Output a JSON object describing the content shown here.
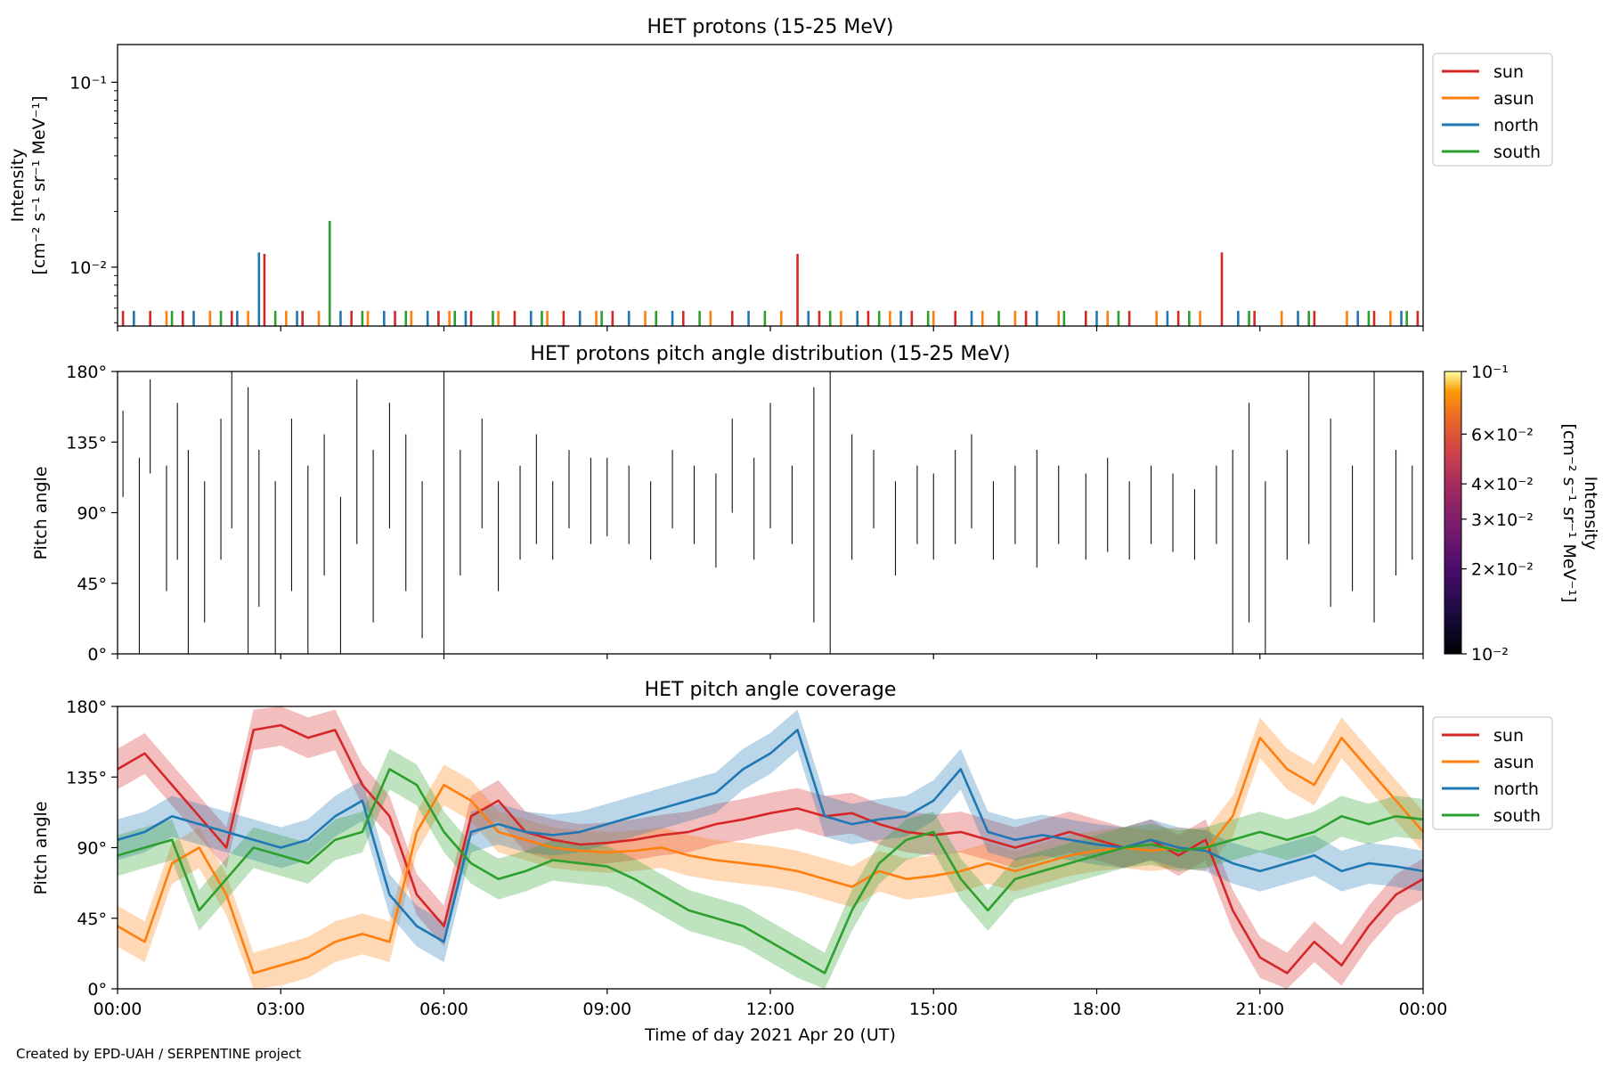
{
  "credit": "Created by EPD-UAH / SERPENTINE project",
  "x_label": "Time of day 2021 Apr 20 (UT)",
  "x_ticks": [
    "00:00",
    "03:00",
    "06:00",
    "09:00",
    "12:00",
    "15:00",
    "18:00",
    "21:00",
    "00:00"
  ],
  "series_colors": {
    "sun": "#d62728",
    "asun": "#ff7f0e",
    "north": "#1f77b4",
    "south": "#2ca02c"
  },
  "chart_data": [
    {
      "type": "bar",
      "title": "HET protons (15-25 MeV)",
      "ylabel_line1": "Intensity",
      "ylabel_line2": "[cm⁻² s⁻¹ sr⁻¹ MeV⁻¹]",
      "yscale": "log",
      "ylim": [
        0.0048,
        0.16
      ],
      "y_tick_labels": [
        "10⁻¹",
        "10⁻²"
      ],
      "x_unit": "hours",
      "xlim": [
        0,
        24
      ],
      "baseline": 0.0048,
      "legend": [
        "sun",
        "asun",
        "north",
        "south"
      ],
      "legend_placement": "right",
      "series": [
        {
          "name": "sun",
          "color": "#d62728",
          "x": [
            0.1,
            0.6,
            1.2,
            2.1,
            2.7,
            3.4,
            4.3,
            5.1,
            5.9,
            6.5,
            7.3,
            8.2,
            9.1,
            10.4,
            11.3,
            12.5,
            12.9,
            13.8,
            14.6,
            15.4,
            16.7,
            17.8,
            18.6,
            19.5,
            20.3,
            20.9,
            22.0,
            23.1,
            23.9
          ],
          "values": [
            0.0058,
            0.0058,
            0.0058,
            0.0058,
            0.0118,
            0.0058,
            0.0058,
            0.0058,
            0.0058,
            0.0058,
            0.0058,
            0.0058,
            0.0058,
            0.0058,
            0.0058,
            0.0118,
            0.0058,
            0.0058,
            0.0058,
            0.0058,
            0.0058,
            0.0058,
            0.0058,
            0.0058,
            0.012,
            0.0058,
            0.0058,
            0.0058,
            0.0058
          ]
        },
        {
          "name": "asun",
          "color": "#ff7f0e",
          "x": [
            0.9,
            1.7,
            2.4,
            3.1,
            3.7,
            4.6,
            5.4,
            6.1,
            7.0,
            7.9,
            8.8,
            9.7,
            10.9,
            12.2,
            13.3,
            14.2,
            15.0,
            15.9,
            16.5,
            17.3,
            18.2,
            19.1,
            19.9,
            21.4,
            22.6,
            23.4
          ],
          "values": [
            0.0058,
            0.0058,
            0.0058,
            0.0058,
            0.0058,
            0.0058,
            0.0058,
            0.0058,
            0.0058,
            0.0058,
            0.0058,
            0.0058,
            0.0058,
            0.0058,
            0.0058,
            0.0058,
            0.0058,
            0.0058,
            0.0058,
            0.0058,
            0.0058,
            0.0058,
            0.0058,
            0.0058,
            0.0058,
            0.0058
          ]
        },
        {
          "name": "north",
          "color": "#1f77b4",
          "x": [
            0.3,
            1.4,
            2.2,
            2.6,
            3.3,
            4.1,
            4.9,
            5.7,
            6.4,
            7.6,
            8.5,
            9.4,
            10.2,
            11.6,
            12.7,
            13.6,
            14.4,
            15.7,
            16.9,
            18.0,
            19.3,
            20.6,
            21.7,
            22.8,
            23.6
          ],
          "values": [
            0.0058,
            0.0058,
            0.0058,
            0.012,
            0.0058,
            0.0058,
            0.0058,
            0.0058,
            0.0058,
            0.0058,
            0.0058,
            0.0058,
            0.0058,
            0.0058,
            0.0058,
            0.0058,
            0.0058,
            0.0058,
            0.0058,
            0.0058,
            0.0058,
            0.0058,
            0.0058,
            0.0058,
            0.0058
          ]
        },
        {
          "name": "south",
          "color": "#2ca02c",
          "x": [
            1.0,
            1.9,
            2.9,
            3.9,
            4.5,
            5.3,
            6.2,
            6.9,
            7.8,
            8.9,
            9.9,
            10.7,
            11.9,
            13.1,
            14.0,
            14.9,
            16.2,
            17.4,
            18.4,
            19.7,
            20.8,
            21.9,
            23.0,
            23.7
          ],
          "values": [
            0.0058,
            0.0058,
            0.0058,
            0.0178,
            0.0058,
            0.0058,
            0.0058,
            0.0058,
            0.0058,
            0.0058,
            0.0058,
            0.0058,
            0.0058,
            0.0058,
            0.0058,
            0.0058,
            0.0058,
            0.0058,
            0.0058,
            0.0058,
            0.0058,
            0.0058,
            0.0058,
            0.0058
          ]
        }
      ]
    },
    {
      "type": "heatmap",
      "title": "HET protons pitch angle distribution (15-25 MeV)",
      "ylabel": "Pitch angle",
      "ylim": [
        0,
        180
      ],
      "y_tick_labels": [
        "0°",
        "45°",
        "90°",
        "135°",
        "180°"
      ],
      "y_tick_values": [
        0,
        45,
        90,
        135,
        180
      ],
      "x_unit": "hours",
      "xlim": [
        0,
        24
      ],
      "colorbar": {
        "label_line1": "Intensity",
        "label_line2": "[cm⁻² s⁻¹ sr⁻¹ MeV⁻¹]",
        "scale": "log",
        "range": [
          0.01,
          0.1
        ],
        "tick_labels": [
          "10⁻²",
          "2×10⁻²",
          "3×10⁻²",
          "4×10⁻²",
          "6×10⁻²",
          "10⁻¹"
        ],
        "tick_values": [
          0.01,
          0.02,
          0.03,
          0.04,
          0.06,
          0.1
        ],
        "colormap": "inferno"
      },
      "segments": [
        [
          0.1,
          100,
          155
        ],
        [
          0.4,
          0,
          125
        ],
        [
          0.6,
          115,
          175
        ],
        [
          0.9,
          40,
          120
        ],
        [
          1.1,
          60,
          160
        ],
        [
          1.3,
          0,
          130
        ],
        [
          1.6,
          20,
          110
        ],
        [
          1.9,
          60,
          150
        ],
        [
          2.1,
          80,
          180
        ],
        [
          2.4,
          0,
          170
        ],
        [
          2.6,
          30,
          130
        ],
        [
          2.9,
          0,
          110
        ],
        [
          3.2,
          40,
          150
        ],
        [
          3.5,
          0,
          120
        ],
        [
          3.8,
          50,
          140
        ],
        [
          4.1,
          0,
          100
        ],
        [
          4.4,
          70,
          175
        ],
        [
          4.7,
          20,
          130
        ],
        [
          5.0,
          80,
          160
        ],
        [
          5.3,
          40,
          140
        ],
        [
          5.6,
          10,
          110
        ],
        [
          6.0,
          0,
          180
        ],
        [
          6.3,
          50,
          130
        ],
        [
          6.7,
          80,
          150
        ],
        [
          7.0,
          40,
          110
        ],
        [
          7.4,
          60,
          120
        ],
        [
          7.7,
          70,
          140
        ],
        [
          8.0,
          60,
          110
        ],
        [
          8.3,
          80,
          130
        ],
        [
          8.7,
          70,
          125
        ],
        [
          9.0,
          75,
          125
        ],
        [
          9.4,
          70,
          120
        ],
        [
          9.8,
          60,
          110
        ],
        [
          10.2,
          80,
          130
        ],
        [
          10.6,
          70,
          120
        ],
        [
          11.0,
          55,
          115
        ],
        [
          11.3,
          90,
          150
        ],
        [
          11.7,
          60,
          125
        ],
        [
          12.0,
          80,
          160
        ],
        [
          12.4,
          70,
          120
        ],
        [
          12.8,
          20,
          170
        ],
        [
          13.1,
          0,
          180
        ],
        [
          13.5,
          60,
          140
        ],
        [
          13.9,
          80,
          130
        ],
        [
          14.3,
          50,
          110
        ],
        [
          14.7,
          70,
          120
        ],
        [
          15.0,
          60,
          115
        ],
        [
          15.4,
          70,
          130
        ],
        [
          15.7,
          80,
          140
        ],
        [
          16.1,
          60,
          110
        ],
        [
          16.5,
          70,
          120
        ],
        [
          16.9,
          55,
          130
        ],
        [
          17.3,
          70,
          120
        ],
        [
          17.8,
          60,
          115
        ],
        [
          18.2,
          65,
          125
        ],
        [
          18.6,
          60,
          110
        ],
        [
          19.0,
          70,
          120
        ],
        [
          19.4,
          65,
          115
        ],
        [
          19.8,
          60,
          105
        ],
        [
          20.2,
          70,
          120
        ],
        [
          20.5,
          0,
          130
        ],
        [
          20.8,
          20,
          160
        ],
        [
          21.1,
          0,
          110
        ],
        [
          21.5,
          60,
          130
        ],
        [
          21.9,
          70,
          180
        ],
        [
          22.3,
          30,
          150
        ],
        [
          22.7,
          40,
          120
        ],
        [
          23.1,
          20,
          180
        ],
        [
          23.5,
          50,
          130
        ],
        [
          23.8,
          60,
          120
        ]
      ]
    },
    {
      "type": "line",
      "title": "HET pitch angle coverage",
      "ylabel": "Pitch angle",
      "ylim": [
        0,
        180
      ],
      "y_tick_labels": [
        "0°",
        "45°",
        "90°",
        "135°",
        "180°"
      ],
      "y_tick_values": [
        0,
        45,
        90,
        135,
        180
      ],
      "x_unit": "hours",
      "xlim": [
        0,
        24
      ],
      "band_halfwidth_deg": 13,
      "legend": [
        "sun",
        "asun",
        "north",
        "south"
      ],
      "legend_placement": "right",
      "x": [
        0,
        0.5,
        1,
        1.5,
        2,
        2.5,
        3,
        3.5,
        4,
        4.5,
        5,
        5.5,
        6,
        6.5,
        7,
        7.5,
        8,
        8.5,
        9,
        9.5,
        10,
        10.5,
        11,
        11.5,
        12,
        12.5,
        13,
        13.5,
        14,
        14.5,
        15,
        15.5,
        16,
        16.5,
        17,
        17.5,
        18,
        18.5,
        19,
        19.5,
        20,
        20.5,
        21,
        21.5,
        22,
        22.5,
        23,
        23.5,
        24
      ],
      "series": [
        {
          "name": "sun",
          "color": "#d62728",
          "values": [
            140,
            150,
            130,
            110,
            90,
            165,
            168,
            160,
            165,
            130,
            110,
            60,
            40,
            110,
            120,
            100,
            95,
            92,
            93,
            95,
            98,
            100,
            105,
            108,
            112,
            115,
            110,
            112,
            105,
            100,
            98,
            100,
            95,
            90,
            95,
            100,
            95,
            90,
            95,
            85,
            95,
            50,
            20,
            10,
            30,
            15,
            40,
            60,
            70
          ]
        },
        {
          "name": "asun",
          "color": "#ff7f0e",
          "values": [
            40,
            30,
            80,
            90,
            60,
            10,
            15,
            20,
            30,
            35,
            30,
            100,
            130,
            120,
            100,
            95,
            90,
            88,
            87,
            88,
            90,
            85,
            82,
            80,
            78,
            75,
            70,
            65,
            75,
            70,
            72,
            75,
            80,
            75,
            80,
            85,
            88,
            90,
            88,
            90,
            88,
            110,
            160,
            140,
            130,
            160,
            140,
            120,
            100
          ]
        },
        {
          "name": "north",
          "color": "#1f77b4",
          "values": [
            95,
            100,
            110,
            105,
            100,
            95,
            90,
            95,
            110,
            120,
            60,
            40,
            30,
            100,
            105,
            100,
            98,
            100,
            105,
            110,
            115,
            120,
            125,
            140,
            150,
            165,
            110,
            105,
            108,
            110,
            120,
            140,
            100,
            95,
            98,
            95,
            92,
            90,
            95,
            90,
            88,
            80,
            75,
            80,
            85,
            75,
            80,
            78,
            75
          ]
        },
        {
          "name": "south",
          "color": "#2ca02c",
          "values": [
            85,
            90,
            95,
            50,
            70,
            90,
            85,
            80,
            95,
            100,
            140,
            130,
            100,
            80,
            70,
            75,
            82,
            80,
            78,
            70,
            60,
            50,
            45,
            40,
            30,
            20,
            10,
            50,
            80,
            95,
            100,
            70,
            50,
            70,
            75,
            80,
            85,
            90,
            92,
            88,
            90,
            95,
            100,
            95,
            100,
            110,
            105,
            110,
            108
          ]
        }
      ]
    }
  ]
}
